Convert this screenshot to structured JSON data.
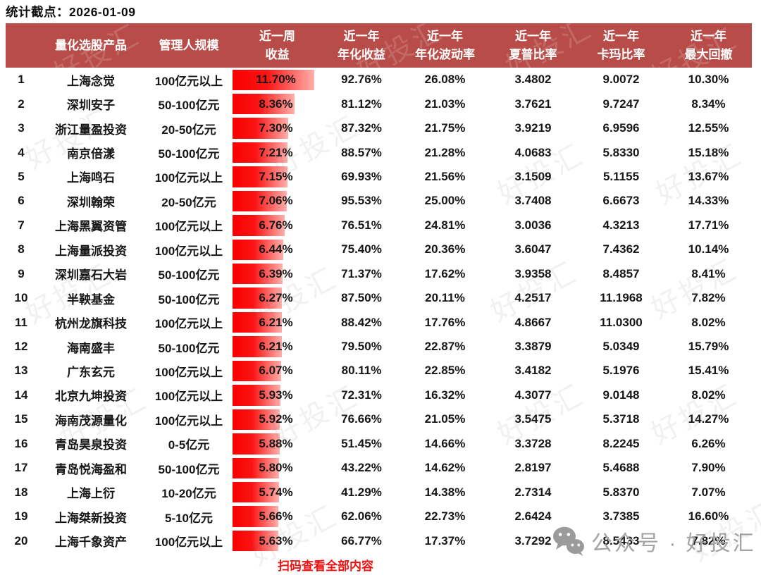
{
  "meta": {
    "cutoff_label": "统计截点：2026-01-09"
  },
  "colors": {
    "header_bg": "#b84c48",
    "bar_start": "#f80000",
    "bar_end": "#ffb0ac",
    "note_red": "#ee1111",
    "watermark_gray": "#a3a3a3"
  },
  "watermark": {
    "text": "好投汇"
  },
  "footer": {
    "scan_note": "扫码查看全部内容",
    "account_watermark": "公众号 · 好投汇",
    "wechat_icon": "wechat-icon"
  },
  "chart_data": {
    "type": "table",
    "title": "统计截点：2026-01-09",
    "header": [
      {
        "line1": "",
        "line2": ""
      },
      {
        "line1": "量化选股产品",
        "line2": ""
      },
      {
        "line1": "管理人规模",
        "line2": ""
      },
      {
        "line1": "近一周",
        "line2": "收益"
      },
      {
        "line1": "近一年",
        "line2": "年化收益"
      },
      {
        "line1": "近一年",
        "line2": "年化波动率"
      },
      {
        "line1": "近一年",
        "line2": "夏普比率"
      },
      {
        "line1": "近一年",
        "line2": "卡玛比率"
      },
      {
        "line1": "近一年",
        "line2": "最大回撤"
      }
    ],
    "week_return_bar": {
      "style": "data-bar-gradient-red",
      "unit": "%"
    },
    "rows": [
      {
        "rank": 1,
        "product": "上海念觉",
        "scale": "100亿元以上",
        "week_return": 11.7,
        "annual_return": "92.76%",
        "volatility": "26.08%",
        "sharpe": "3.4802",
        "calmar": "9.0072",
        "max_drawdown": "10.30%"
      },
      {
        "rank": 2,
        "product": "深圳安子",
        "scale": "50-100亿元",
        "week_return": 8.36,
        "annual_return": "81.12%",
        "volatility": "21.03%",
        "sharpe": "3.7621",
        "calmar": "9.7247",
        "max_drawdown": "8.34%"
      },
      {
        "rank": 3,
        "product": "浙江量盈投资",
        "scale": "20-50亿元",
        "week_return": 7.3,
        "annual_return": "87.32%",
        "volatility": "21.75%",
        "sharpe": "3.9219",
        "calmar": "6.9596",
        "max_drawdown": "12.55%"
      },
      {
        "rank": 4,
        "product": "南京倍漾",
        "scale": "50-100亿元",
        "week_return": 7.21,
        "annual_return": "88.57%",
        "volatility": "21.28%",
        "sharpe": "4.0683",
        "calmar": "5.8330",
        "max_drawdown": "15.18%"
      },
      {
        "rank": 5,
        "product": "上海鸣石",
        "scale": "100亿元以上",
        "week_return": 7.15,
        "annual_return": "69.93%",
        "volatility": "21.56%",
        "sharpe": "3.1509",
        "calmar": "5.1155",
        "max_drawdown": "13.67%"
      },
      {
        "rank": 6,
        "product": "深圳翰荣",
        "scale": "20-50亿元",
        "week_return": 7.06,
        "annual_return": "95.53%",
        "volatility": "25.00%",
        "sharpe": "3.7408",
        "calmar": "6.6673",
        "max_drawdown": "14.33%"
      },
      {
        "rank": 7,
        "product": "上海黑翼资管",
        "scale": "100亿元以上",
        "week_return": 6.76,
        "annual_return": "76.51%",
        "volatility": "24.81%",
        "sharpe": "3.0036",
        "calmar": "4.3213",
        "max_drawdown": "17.71%"
      },
      {
        "rank": 8,
        "product": "上海量派投资",
        "scale": "100亿元以上",
        "week_return": 6.44,
        "annual_return": "75.40%",
        "volatility": "20.36%",
        "sharpe": "3.6047",
        "calmar": "7.4362",
        "max_drawdown": "10.14%"
      },
      {
        "rank": 9,
        "product": "深圳嘉石大岩",
        "scale": "50-100亿元",
        "week_return": 6.39,
        "annual_return": "71.37%",
        "volatility": "17.62%",
        "sharpe": "3.9358",
        "calmar": "8.4857",
        "max_drawdown": "8.41%"
      },
      {
        "rank": 10,
        "product": "半鞅基金",
        "scale": "50-100亿元",
        "week_return": 6.27,
        "annual_return": "87.50%",
        "volatility": "20.11%",
        "sharpe": "4.2517",
        "calmar": "11.1968",
        "max_drawdown": "7.82%"
      },
      {
        "rank": 11,
        "product": "杭州龙旗科技",
        "scale": "100亿元以上",
        "week_return": 6.21,
        "annual_return": "88.42%",
        "volatility": "17.76%",
        "sharpe": "4.8667",
        "calmar": "11.0300",
        "max_drawdown": "8.02%"
      },
      {
        "rank": 12,
        "product": "海南盛丰",
        "scale": "50-100亿元",
        "week_return": 6.21,
        "annual_return": "79.50%",
        "volatility": "22.87%",
        "sharpe": "3.3879",
        "calmar": "5.0349",
        "max_drawdown": "15.79%"
      },
      {
        "rank": 13,
        "product": "广东玄元",
        "scale": "100亿元以上",
        "week_return": 6.07,
        "annual_return": "80.11%",
        "volatility": "22.85%",
        "sharpe": "3.4182",
        "calmar": "5.1976",
        "max_drawdown": "15.41%"
      },
      {
        "rank": 14,
        "product": "北京九坤投资",
        "scale": "100亿元以上",
        "week_return": 5.93,
        "annual_return": "72.31%",
        "volatility": "16.32%",
        "sharpe": "4.3077",
        "calmar": "9.0148",
        "max_drawdown": "8.02%"
      },
      {
        "rank": 15,
        "product": "海南茂源量化",
        "scale": "100亿元以上",
        "week_return": 5.92,
        "annual_return": "76.66%",
        "volatility": "21.05%",
        "sharpe": "3.5475",
        "calmar": "5.3718",
        "max_drawdown": "14.27%"
      },
      {
        "rank": 16,
        "product": "青岛昊泉投资",
        "scale": "0-5亿元",
        "week_return": 5.88,
        "annual_return": "51.45%",
        "volatility": "14.66%",
        "sharpe": "3.3728",
        "calmar": "8.2245",
        "max_drawdown": "6.26%"
      },
      {
        "rank": 17,
        "product": "青岛悦海盈和",
        "scale": "50-100亿元",
        "week_return": 5.8,
        "annual_return": "43.22%",
        "volatility": "14.62%",
        "sharpe": "2.8197",
        "calmar": "5.4688",
        "max_drawdown": "7.90%"
      },
      {
        "rank": 18,
        "product": "上海上衍",
        "scale": "10-20亿元",
        "week_return": 5.74,
        "annual_return": "41.29%",
        "volatility": "14.38%",
        "sharpe": "2.7314",
        "calmar": "5.8370",
        "max_drawdown": "7.07%"
      },
      {
        "rank": 19,
        "product": "上海桀新投资",
        "scale": "5-10亿元",
        "week_return": 5.66,
        "annual_return": "62.06%",
        "volatility": "22.73%",
        "sharpe": "2.6424",
        "calmar": "3.7385",
        "max_drawdown": "16.60%"
      },
      {
        "rank": 20,
        "product": "上海千象资产",
        "scale": "100亿元以上",
        "week_return": 5.63,
        "annual_return": "66.77%",
        "volatility": "17.37%",
        "sharpe": "3.7292",
        "calmar": "8.5433",
        "max_drawdown": "7.82%"
      }
    ]
  }
}
